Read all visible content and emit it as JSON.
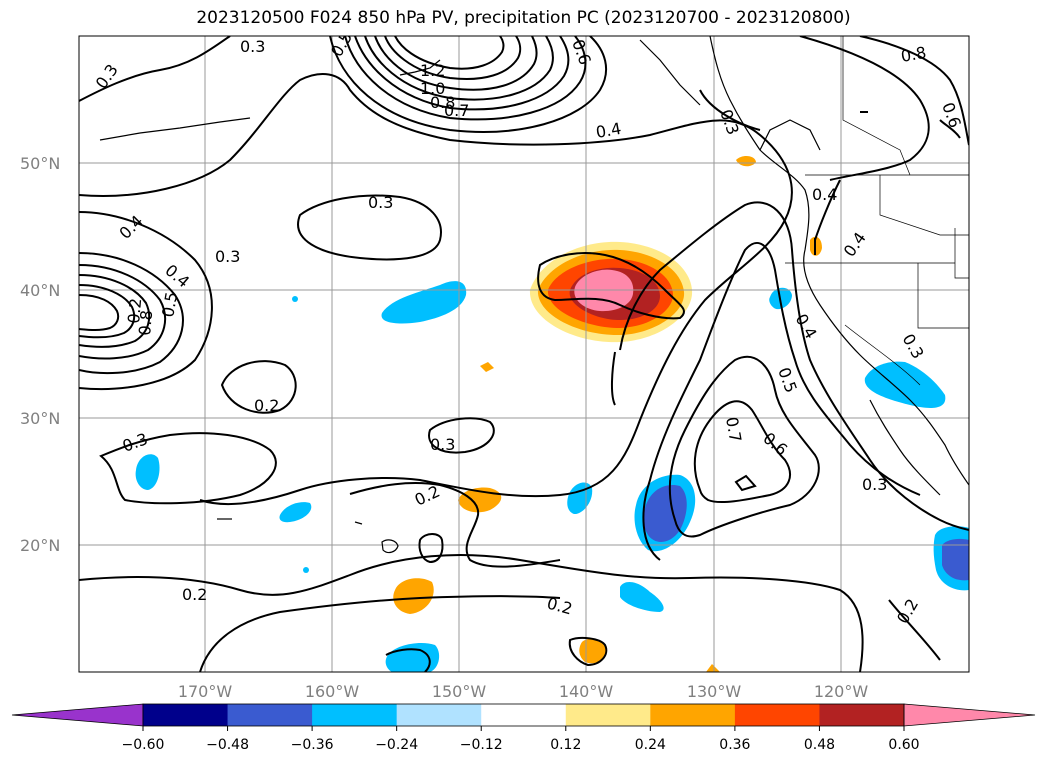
{
  "title": "2023120500 F024 850 hPa PV, precipitation PC (2023120700 - 2023120800)",
  "latitude_labels": [
    "50°N",
    "40°N",
    "30°N",
    "20°N"
  ],
  "longitude_labels": [
    "170°W",
    "160°W",
    "150°W",
    "140°W",
    "130°W",
    "120°W"
  ],
  "contour_labels": [
    "0.3",
    "0.3",
    "0.3",
    "0.3",
    "0.3",
    "0.3",
    "0.3",
    "0.3",
    "0.4",
    "0.4",
    "0.4",
    "0.4",
    "0.4",
    "0.5",
    "0.5",
    "0.5",
    "0.6",
    "0.6",
    "0.7",
    "0.7",
    "0.8",
    "0.8",
    "1.0",
    "1.2",
    "0.2",
    "0.2",
    "0.2",
    "0.2",
    "0.2",
    "0.2",
    "0.6",
    "0.8",
    "0.4",
    "0.3"
  ],
  "colorbar": {
    "ticks": [
      "−0.60",
      "−0.48",
      "−0.36",
      "−0.24",
      "−0.12",
      "0.12",
      "0.24",
      "0.36",
      "0.48",
      "0.60"
    ],
    "colors": [
      "#9933cc",
      "#00008b",
      "#3a5bd0",
      "#00bfff",
      "#b0e2ff",
      "#ffffff",
      "#ffea8a",
      "#ffa500",
      "#ff4500",
      "#b22222",
      "#ff88aa"
    ]
  }
}
